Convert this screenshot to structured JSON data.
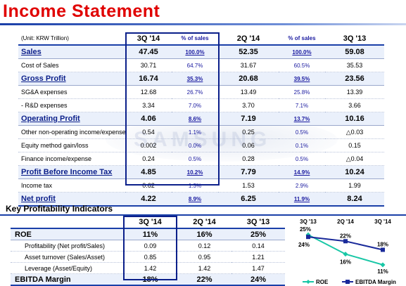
{
  "page": {
    "title": "Income Statement"
  },
  "income": {
    "unit": "(Unit: KRW Trillion)",
    "headers": [
      "3Q '14",
      "% of sales",
      "2Q '14",
      "% of sales",
      "3Q '13"
    ],
    "rows": [
      {
        "label": "Sales",
        "v1": "47.45",
        "p1": "100.0%",
        "v2": "52.35",
        "p2": "100.0%",
        "v3": "59.08",
        "major": true
      },
      {
        "label": "Cost of Sales",
        "v1": "30.71",
        "p1": "64.7%",
        "v2": "31.67",
        "p2": "60.5%",
        "v3": "35.53",
        "major": false
      },
      {
        "label": "Gross Profit",
        "v1": "16.74",
        "p1": "35.3%",
        "v2": "20.68",
        "p2": "39.5%",
        "v3": "23.56",
        "major": true
      },
      {
        "label": "SG&A expenses",
        "v1": "12.68",
        "p1": "26.7%",
        "v2": "13.49",
        "p2": "25.8%",
        "v3": "13.39",
        "major": false
      },
      {
        "label": "- R&D expenses",
        "v1": "3.34",
        "p1": "7.0%",
        "v2": "3.70",
        "p2": "7.1%",
        "v3": "3.66",
        "major": false
      },
      {
        "label": "Operating Profit",
        "v1": "4.06",
        "p1": "8.6%",
        "v2": "7.19",
        "p2": "13.7%",
        "v3": "10.16",
        "major": true
      },
      {
        "label": "Other non-operating income/expense",
        "v1": "0.54",
        "p1": "1.1%",
        "v2": "0.25",
        "p2": "0.5%",
        "v3": "△0.03",
        "major": false
      },
      {
        "label": "Equity method gain/loss",
        "v1": "0.002",
        "p1": "0.0%",
        "v2": "0.06",
        "p2": "0.1%",
        "v3": "0.15",
        "major": false
      },
      {
        "label": "Finance income/expense",
        "v1": "0.24",
        "p1": "0.5%",
        "v2": "0.28",
        "p2": "0.5%",
        "v3": "△0.04",
        "major": false
      },
      {
        "label": "Profit Before Income Tax",
        "v1": "4.85",
        "p1": "10.2%",
        "v2": "7.79",
        "p2": "14.9%",
        "v3": "10.24",
        "major": true
      },
      {
        "label": "Income tax",
        "v1": "0.62",
        "p1": "1.3%",
        "v2": "1.53",
        "p2": "2.9%",
        "v3": "1.99",
        "major": false
      },
      {
        "label": "Net profit",
        "v1": "4.22",
        "p1": "8.9%",
        "v2": "6.25",
        "p2": "11.9%",
        "v3": "8.24",
        "major": true
      }
    ]
  },
  "kpi": {
    "title": "Key Profitability Indicators",
    "headers": [
      "3Q '14",
      "2Q '14",
      "3Q '13"
    ],
    "rows": [
      {
        "label": "ROE",
        "v1": "11%",
        "v2": "16%",
        "v3": "25%",
        "major": true
      },
      {
        "label": "Profitability (Net profit/Sales)",
        "v1": "0.09",
        "v2": "0.12",
        "v3": "0.14",
        "major": false
      },
      {
        "label": "Asset turnover (Sales/Asset)",
        "v1": "0.85",
        "v2": "0.95",
        "v3": "1.21",
        "major": false
      },
      {
        "label": "Leverage (Asset/Equity)",
        "v1": "1.42",
        "v2": "1.42",
        "v3": "1.47",
        "major": false
      },
      {
        "label": "EBITDA Margin",
        "v1": "18%",
        "v2": "22%",
        "v3": "24%",
        "major": true
      }
    ]
  },
  "chart_data": {
    "type": "line",
    "categories": [
      "3Q '13",
      "2Q '14",
      "3Q '14"
    ],
    "series": [
      {
        "name": "ROE",
        "values": [
          25,
          16,
          11
        ],
        "labels": [
          "25%",
          "16%",
          "11%"
        ],
        "color": "#18c7a6"
      },
      {
        "name": "EBITDA Margin",
        "values": [
          24,
          22,
          18
        ],
        "labels": [
          "24%",
          "22%",
          "18%"
        ],
        "color": "#1a2a9a"
      }
    ],
    "ylim": [
      8,
      27
    ],
    "legend": "bottom"
  }
}
